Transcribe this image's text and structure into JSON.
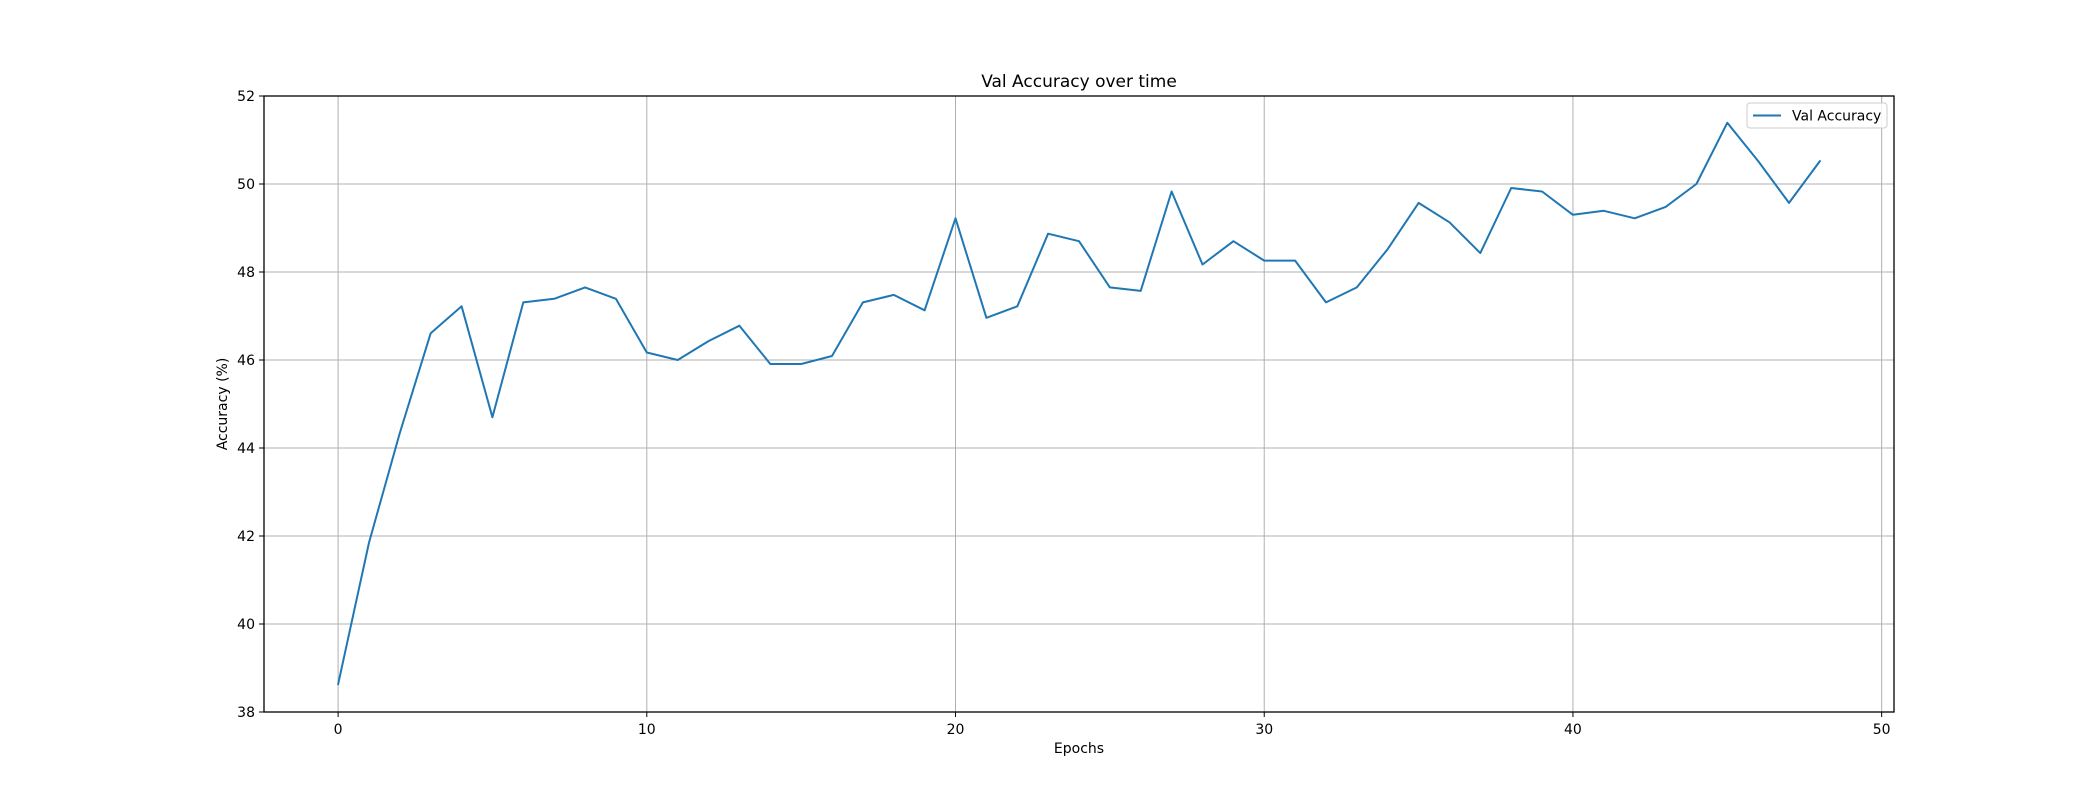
{
  "chart_data": {
    "type": "line",
    "title": "Val Accuracy over time",
    "xlabel": "Epochs",
    "ylabel": "Accuracy (%)",
    "xlim": [
      -2.4,
      50.4
    ],
    "ylim": [
      38,
      52
    ],
    "xticks": [
      0,
      10,
      20,
      30,
      40,
      50
    ],
    "yticks": [
      38,
      40,
      42,
      44,
      46,
      48,
      50,
      52
    ],
    "grid": true,
    "legend_position": "top-right",
    "series": [
      {
        "name": "Val Accuracy",
        "color": "#1f77b4",
        "x": [
          0,
          1,
          2,
          3,
          4,
          5,
          6,
          7,
          8,
          9,
          10,
          11,
          12,
          13,
          14,
          15,
          16,
          17,
          18,
          19,
          20,
          21,
          22,
          23,
          24,
          25,
          26,
          27,
          28,
          29,
          30,
          31,
          32,
          33,
          34,
          35,
          36,
          37,
          38,
          39,
          40,
          41,
          42,
          43,
          44,
          45,
          46,
          47,
          48
        ],
        "y": [
          38.63,
          41.85,
          44.34,
          46.61,
          47.22,
          44.7,
          47.31,
          47.39,
          47.65,
          47.39,
          46.17,
          46.0,
          46.43,
          46.78,
          45.91,
          45.91,
          46.09,
          47.31,
          47.48,
          47.13,
          49.22,
          46.96,
          47.22,
          48.87,
          48.7,
          47.65,
          47.57,
          49.83,
          48.17,
          48.7,
          48.26,
          48.26,
          47.31,
          47.65,
          48.52,
          49.57,
          49.13,
          48.43,
          49.91,
          49.83,
          49.3,
          49.39,
          49.22,
          49.48,
          50.0,
          51.39,
          50.52,
          49.57,
          50.52
        ]
      }
    ]
  }
}
